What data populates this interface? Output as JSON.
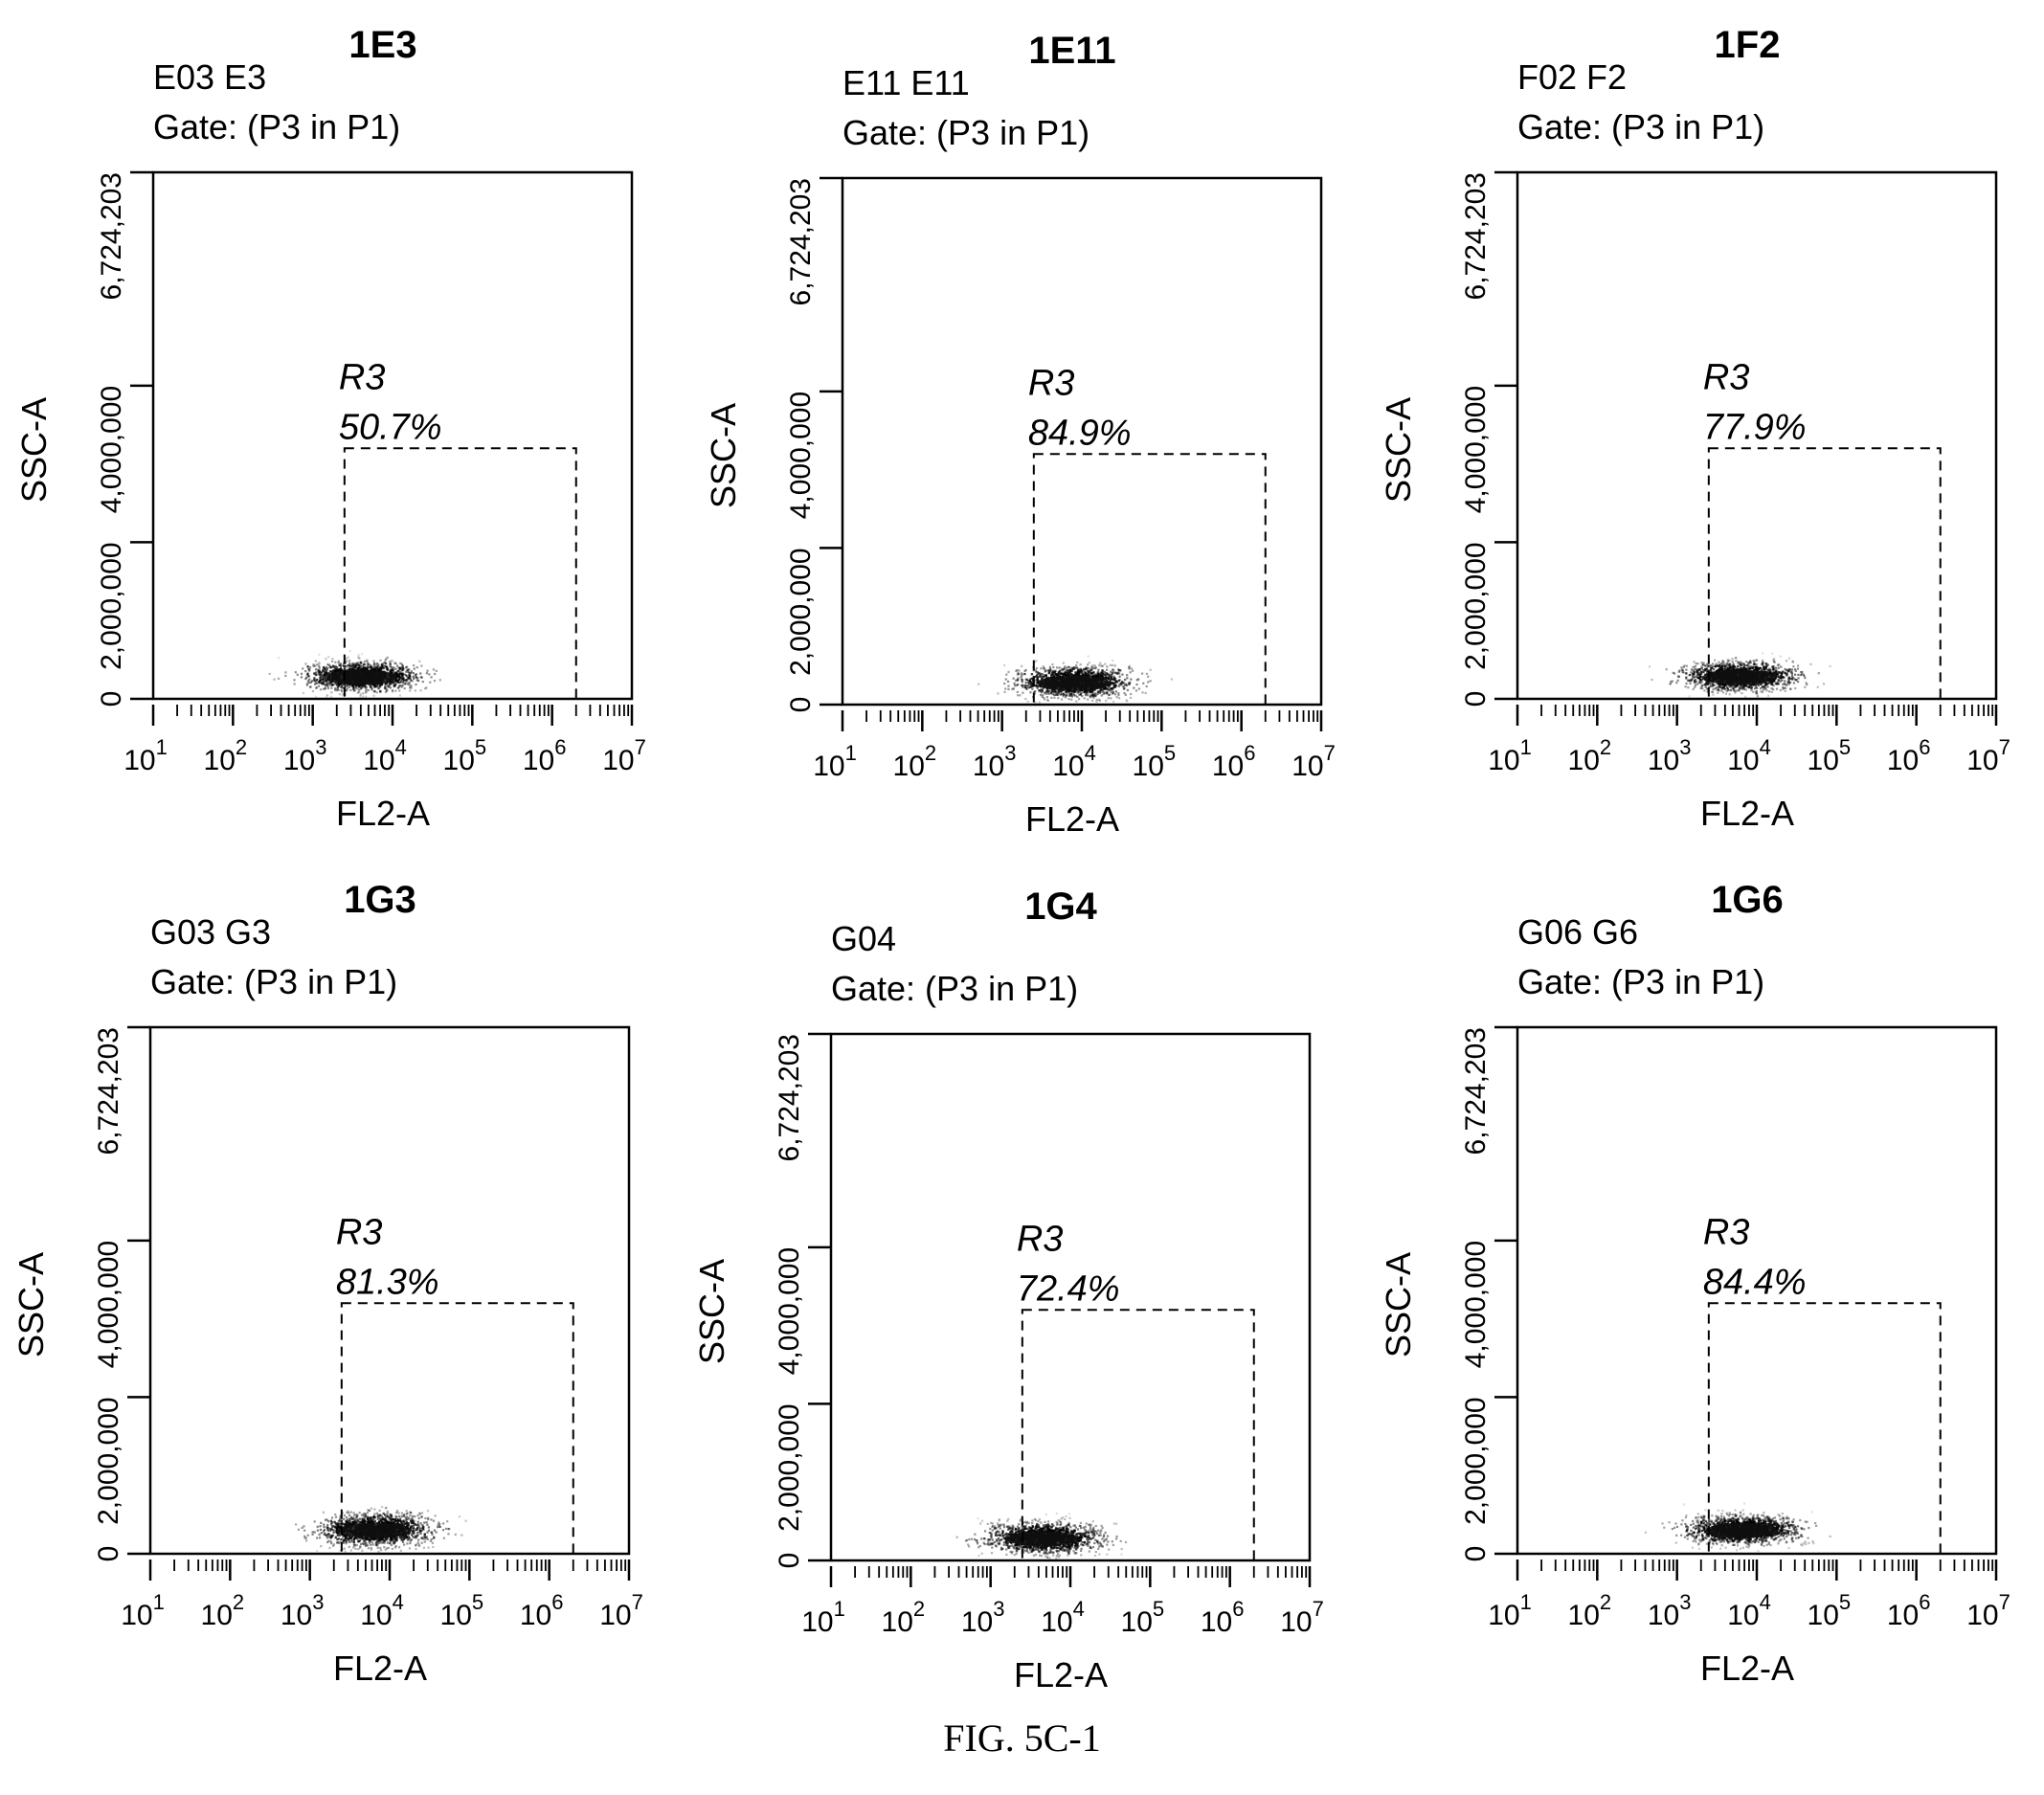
{
  "caption": "FIG. 5C-1",
  "chart_data": [
    {
      "type": "scatter",
      "title": "1E3",
      "sample": "E03 E3",
      "gate": "Gate: (P3 in P1)",
      "xlabel": "FL2-A",
      "ylabel": "SSC-A",
      "x_scale": "log",
      "xlim": [
        10,
        10000000
      ],
      "ylim": [
        0,
        6724203
      ],
      "x_ticks": [
        {
          "value": 10,
          "base": "10",
          "exp": "1"
        },
        {
          "value": 100,
          "base": "10",
          "exp": "2"
        },
        {
          "value": 1000,
          "base": "10",
          "exp": "3"
        },
        {
          "value": 10000,
          "base": "10",
          "exp": "4"
        },
        {
          "value": 100000,
          "base": "10",
          "exp": "5"
        },
        {
          "value": 1000000,
          "base": "10",
          "exp": "6"
        },
        {
          "value": 10000000,
          "base": "10",
          "exp": "7"
        }
      ],
      "y_ticks": [
        {
          "value": 0,
          "label": "0"
        },
        {
          "value": 2000000,
          "label": "2,000,000"
        },
        {
          "value": 4000000,
          "label": "4,000,000"
        },
        {
          "value": 6724203,
          "label": "6,724,203"
        }
      ],
      "gate_region": {
        "name": "R3",
        "percent": "50.7%",
        "x": [
          2500,
          2000000
        ],
        "y": [
          0,
          3200000
        ]
      },
      "population": {
        "center_x": 4000,
        "center_y": 300000,
        "spread_x": 0.6,
        "spread_y": 120000
      }
    },
    {
      "type": "scatter",
      "title": "1E11",
      "sample": "E11 E11",
      "gate": "Gate: (P3 in P1)",
      "xlabel": "FL2-A",
      "ylabel": "SSC-A",
      "x_scale": "log",
      "xlim": [
        10,
        10000000
      ],
      "ylim": [
        0,
        6724203
      ],
      "x_ticks": [
        {
          "value": 10,
          "base": "10",
          "exp": "1"
        },
        {
          "value": 100,
          "base": "10",
          "exp": "2"
        },
        {
          "value": 1000,
          "base": "10",
          "exp": "3"
        },
        {
          "value": 10000,
          "base": "10",
          "exp": "4"
        },
        {
          "value": 100000,
          "base": "10",
          "exp": "5"
        },
        {
          "value": 1000000,
          "base": "10",
          "exp": "6"
        },
        {
          "value": 10000000,
          "base": "10",
          "exp": "7"
        }
      ],
      "y_ticks": [
        {
          "value": 0,
          "label": "0"
        },
        {
          "value": 2000000,
          "label": "2,000,000"
        },
        {
          "value": 4000000,
          "label": "4,000,000"
        },
        {
          "value": 6724203,
          "label": "6,724,203"
        }
      ],
      "gate_region": {
        "name": "R3",
        "percent": "84.9%",
        "x": [
          2500,
          2000000
        ],
        "y": [
          0,
          3200000
        ]
      },
      "population": {
        "center_x": 8000,
        "center_y": 300000,
        "spread_x": 0.6,
        "spread_y": 130000
      }
    },
    {
      "type": "scatter",
      "title": "1F2",
      "sample": "F02 F2",
      "gate": "Gate: (P3 in P1)",
      "xlabel": "FL2-A",
      "ylabel": "SSC-A",
      "x_scale": "log",
      "xlim": [
        10,
        10000000
      ],
      "ylim": [
        0,
        6724203
      ],
      "x_ticks": [
        {
          "value": 10,
          "base": "10",
          "exp": "1"
        },
        {
          "value": 100,
          "base": "10",
          "exp": "2"
        },
        {
          "value": 1000,
          "base": "10",
          "exp": "3"
        },
        {
          "value": 10000,
          "base": "10",
          "exp": "4"
        },
        {
          "value": 100000,
          "base": "10",
          "exp": "5"
        },
        {
          "value": 1000000,
          "base": "10",
          "exp": "6"
        },
        {
          "value": 10000000,
          "base": "10",
          "exp": "7"
        }
      ],
      "y_ticks": [
        {
          "value": 0,
          "label": "0"
        },
        {
          "value": 2000000,
          "label": "2,000,000"
        },
        {
          "value": 4000000,
          "label": "4,000,000"
        },
        {
          "value": 6724203,
          "label": "6,724,203"
        }
      ],
      "gate_region": {
        "name": "R3",
        "percent": "77.9%",
        "x": [
          2500,
          2000000
        ],
        "y": [
          0,
          3200000
        ]
      },
      "population": {
        "center_x": 6000,
        "center_y": 300000,
        "spread_x": 0.6,
        "spread_y": 120000
      }
    },
    {
      "type": "scatter",
      "title": "1G3",
      "sample": "G03 G3",
      "gate": "Gate: (P3 in P1)",
      "xlabel": "FL2-A",
      "ylabel": "SSC-A",
      "x_scale": "log",
      "xlim": [
        10,
        10000000
      ],
      "ylim": [
        0,
        6724203
      ],
      "x_ticks": [
        {
          "value": 10,
          "base": "10",
          "exp": "1"
        },
        {
          "value": 100,
          "base": "10",
          "exp": "2"
        },
        {
          "value": 1000,
          "base": "10",
          "exp": "3"
        },
        {
          "value": 10000,
          "base": "10",
          "exp": "4"
        },
        {
          "value": 100000,
          "base": "10",
          "exp": "5"
        },
        {
          "value": 1000000,
          "base": "10",
          "exp": "6"
        },
        {
          "value": 10000000,
          "base": "10",
          "exp": "7"
        }
      ],
      "y_ticks": [
        {
          "value": 0,
          "label": "0"
        },
        {
          "value": 2000000,
          "label": "2,000,000"
        },
        {
          "value": 4000000,
          "label": "4,000,000"
        },
        {
          "value": 6724203,
          "label": "6,724,203"
        }
      ],
      "gate_region": {
        "name": "R3",
        "percent": "81.3%",
        "x": [
          2500,
          2000000
        ],
        "y": [
          0,
          3200000
        ]
      },
      "population": {
        "center_x": 6500,
        "center_y": 320000,
        "spread_x": 0.6,
        "spread_y": 140000
      }
    },
    {
      "type": "scatter",
      "title": "1G4",
      "sample": "G04",
      "gate": "Gate: (P3 in P1)",
      "xlabel": "FL2-A",
      "ylabel": "SSC-A",
      "x_scale": "log",
      "xlim": [
        10,
        10000000
      ],
      "ylim": [
        0,
        6724203
      ],
      "x_ticks": [
        {
          "value": 10,
          "base": "10",
          "exp": "1"
        },
        {
          "value": 100,
          "base": "10",
          "exp": "2"
        },
        {
          "value": 1000,
          "base": "10",
          "exp": "3"
        },
        {
          "value": 10000,
          "base": "10",
          "exp": "4"
        },
        {
          "value": 100000,
          "base": "10",
          "exp": "5"
        },
        {
          "value": 1000000,
          "base": "10",
          "exp": "6"
        },
        {
          "value": 10000000,
          "base": "10",
          "exp": "7"
        }
      ],
      "y_ticks": [
        {
          "value": 0,
          "label": "0"
        },
        {
          "value": 2000000,
          "label": "2,000,000"
        },
        {
          "value": 4000000,
          "label": "4,000,000"
        },
        {
          "value": 6724203,
          "label": "6,724,203"
        }
      ],
      "gate_region": {
        "name": "R3",
        "percent": "72.4%",
        "x": [
          2500,
          2000000
        ],
        "y": [
          0,
          3200000
        ]
      },
      "population": {
        "center_x": 4500,
        "center_y": 300000,
        "spread_x": 0.6,
        "spread_y": 130000
      }
    },
    {
      "type": "scatter",
      "title": "1G6",
      "sample": "G06 G6",
      "gate": "Gate: (P3 in P1)",
      "xlabel": "FL2-A",
      "ylabel": "SSC-A",
      "x_scale": "log",
      "xlim": [
        10,
        10000000
      ],
      "ylim": [
        0,
        6724203
      ],
      "x_ticks": [
        {
          "value": 10,
          "base": "10",
          "exp": "1"
        },
        {
          "value": 100,
          "base": "10",
          "exp": "2"
        },
        {
          "value": 1000,
          "base": "10",
          "exp": "3"
        },
        {
          "value": 10000,
          "base": "10",
          "exp": "4"
        },
        {
          "value": 100000,
          "base": "10",
          "exp": "5"
        },
        {
          "value": 1000000,
          "base": "10",
          "exp": "6"
        },
        {
          "value": 10000000,
          "base": "10",
          "exp": "7"
        }
      ],
      "y_ticks": [
        {
          "value": 0,
          "label": "0"
        },
        {
          "value": 2000000,
          "label": "2,000,000"
        },
        {
          "value": 4000000,
          "label": "4,000,000"
        },
        {
          "value": 6724203,
          "label": "6,724,203"
        }
      ],
      "gate_region": {
        "name": "R3",
        "percent": "84.4%",
        "x": [
          2500,
          2000000
        ],
        "y": [
          0,
          3200000
        ]
      },
      "population": {
        "center_x": 6500,
        "center_y": 320000,
        "spread_x": 0.6,
        "spread_y": 120000
      }
    }
  ]
}
